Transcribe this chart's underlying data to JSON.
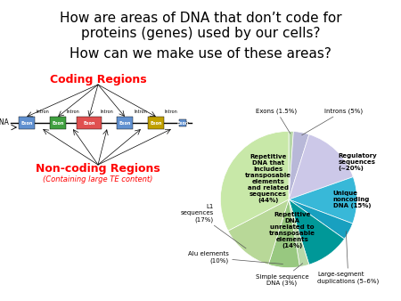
{
  "title_line1": "How are areas of DNA that don’t code for",
  "title_line2": "proteins (genes) used by our cells?",
  "title_line3": "How can we make use of these areas?",
  "pie_slices": [
    {
      "label": "Exons (1.5%)",
      "value": 1.5,
      "color": "#b8d8a8"
    },
    {
      "label": "Introns (5%)",
      "value": 5.0,
      "color": "#b8b8d8"
    },
    {
      "label": "Regulatory\nsequences\n(∼20%)",
      "value": 20.0,
      "color": "#ccc8e8"
    },
    {
      "label": "Unique\nnoncoding\nDNA (15%)",
      "value": 15.0,
      "color": "#38b8d8"
    },
    {
      "label": "Large-segment\nduplications (5–6%)",
      "value": 5.5,
      "color": "#18a0c0"
    },
    {
      "label": "Repetitive\nDNA\nunrelated to\ntransposable\nelements\n(14%)",
      "value": 14.0,
      "color": "#009898"
    },
    {
      "label": "Simple sequence\nDNA (3%)",
      "value": 3.0,
      "color": "#b8d8a8"
    },
    {
      "label": "Alu elements\n(10%)",
      "value": 10.0,
      "color": "#98c880"
    },
    {
      "label": "L1\nsequences\n(17%)",
      "value": 17.0,
      "color": "#b8d898"
    },
    {
      "label": "Repetitive\nDNA that\nincludes\ntransposable\nelements\nand related\nsequences\n(44%)",
      "value": 44.0,
      "color": "#c8e8a8"
    }
  ],
  "bg_color": "#ffffff",
  "title_fontsize": 11,
  "subtitle_fontsize": 11
}
